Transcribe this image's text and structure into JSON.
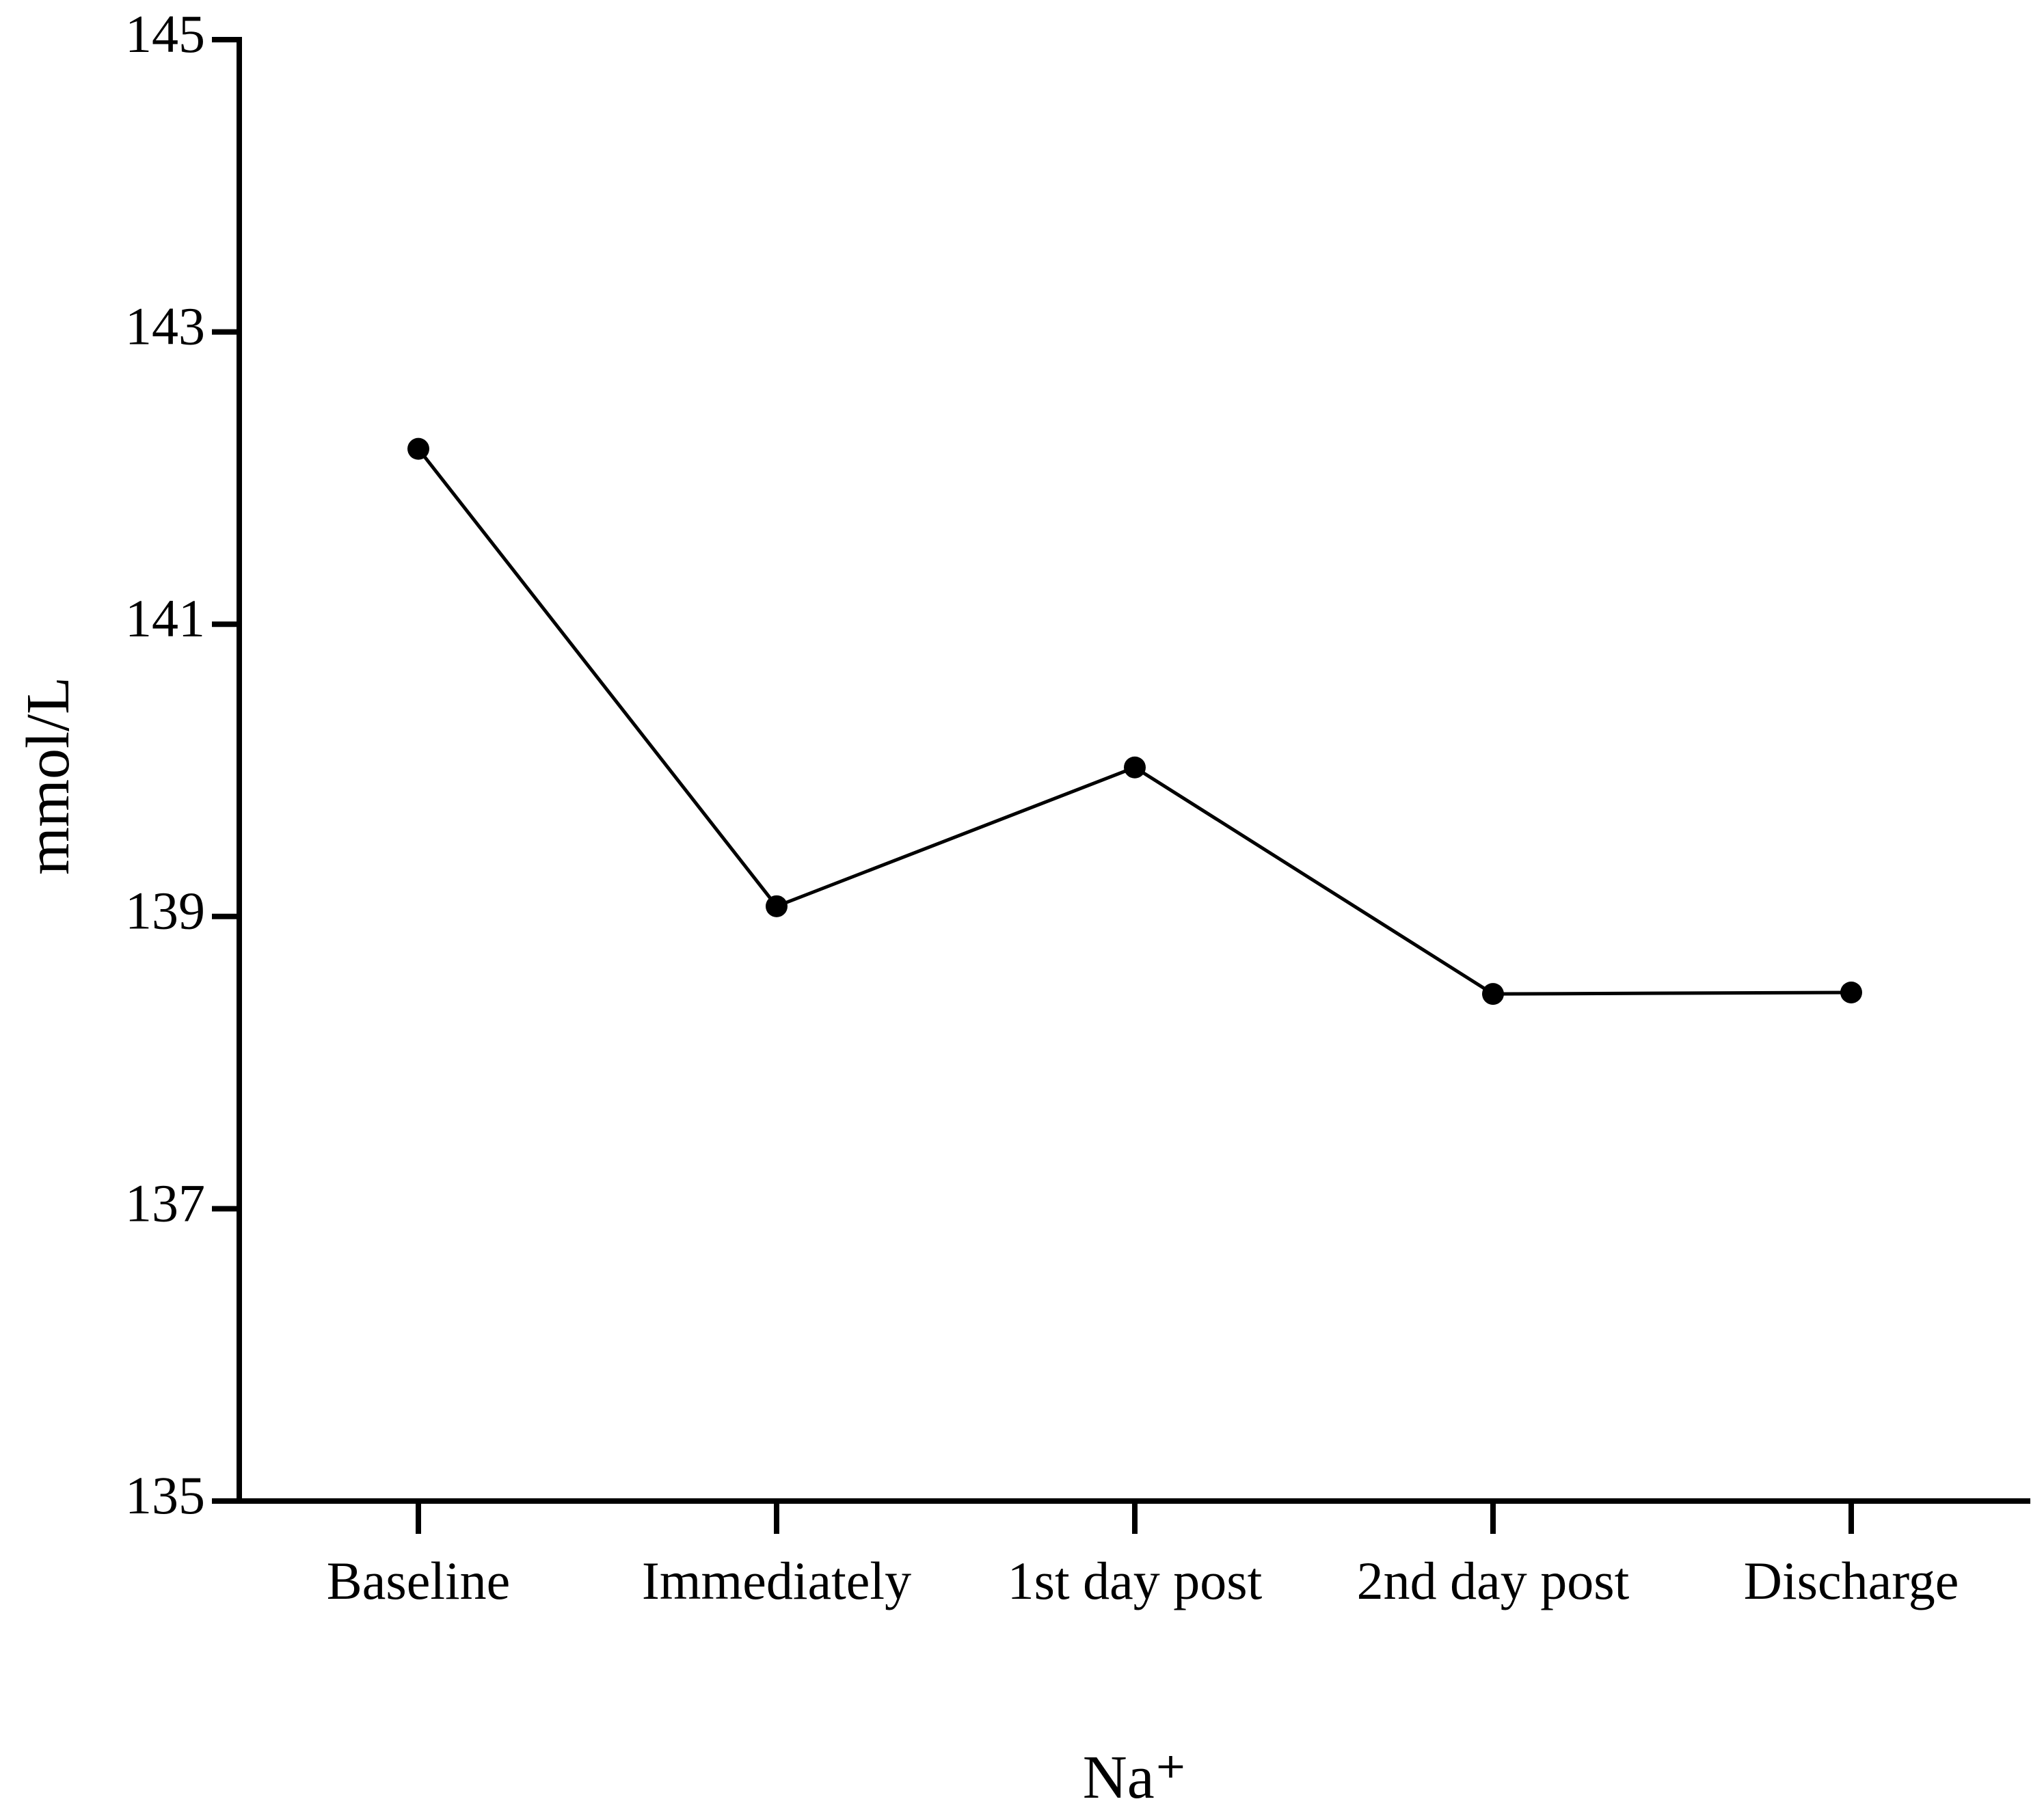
{
  "chart_data": {
    "type": "line",
    "x_label": "Na⁺",
    "y_label": "mmol/L",
    "categories": [
      "Baseline",
      "Immediately",
      "1st day post",
      "2nd day post",
      "Discharge"
    ],
    "series": [
      {
        "name": "Na⁺",
        "color": "#000000",
        "values": [
          142.2,
          139.07,
          140.02,
          138.47,
          138.48
        ]
      }
    ],
    "ylim": [
      135,
      145
    ],
    "yticks": [
      135,
      137,
      139,
      141,
      143,
      145
    ],
    "grid": false
  }
}
